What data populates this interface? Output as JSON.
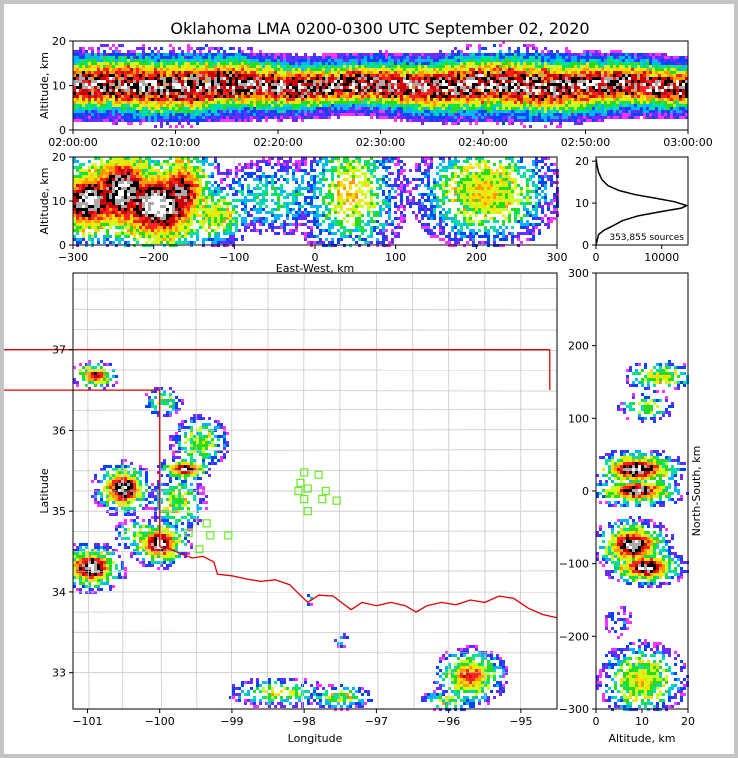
{
  "title": "Oklahoma LMA 0200-0300 UTC September 02, 2020",
  "colors": {
    "state_border": "#e00000",
    "river": "#e00000",
    "county": "#c8c8c8",
    "station": "#66ee22",
    "axis": "#000000"
  },
  "chart_data": [
    {
      "panel": "time-altitude",
      "type": "heatmap",
      "xlabel": "",
      "ylabel": "Altitude, km",
      "xticks": [
        "02:00:00",
        "02:10:00",
        "02:20:00",
        "02:30:00",
        "02:40:00",
        "02:50:00",
        "03:00:00"
      ],
      "yticks": [
        "0",
        "10",
        "20"
      ],
      "xlim_minutes": [
        0,
        60
      ],
      "ylim": [
        0,
        20
      ]
    },
    {
      "panel": "east-west-altitude",
      "type": "heatmap",
      "xlabel": "East-West, km",
      "ylabel": "Altitude, km",
      "xticks": [
        "−300",
        "−200",
        "−100",
        "0",
        "100",
        "200",
        "300"
      ],
      "yticks": [
        "0",
        "10",
        "20"
      ],
      "xlim": [
        -300,
        300
      ],
      "ylim": [
        0,
        20
      ],
      "grid": true,
      "cores": [
        {
          "x": -280,
          "z": 10,
          "w": 28,
          "h": 8,
          "i": 0.95
        },
        {
          "x": -240,
          "z": 12,
          "w": 30,
          "h": 10,
          "i": 0.95
        },
        {
          "x": -195,
          "z": 9,
          "w": 38,
          "h": 9,
          "i": 1.0
        },
        {
          "x": -165,
          "z": 12,
          "w": 22,
          "h": 9,
          "i": 0.85
        },
        {
          "x": -125,
          "z": 7,
          "w": 25,
          "h": 6,
          "i": 0.5
        },
        {
          "x": -50,
          "z": 11,
          "w": 45,
          "h": 8,
          "i": 0.25
        },
        {
          "x": 45,
          "z": 12,
          "w": 35,
          "h": 14,
          "i": 0.4
        },
        {
          "x": 210,
          "z": 12,
          "w": 45,
          "h": 10,
          "i": 0.55
        }
      ]
    },
    {
      "panel": "altitude-histogram",
      "type": "line",
      "xticks": [
        "0",
        "10000"
      ],
      "yticks": [
        "0",
        "10",
        "20"
      ],
      "xlim": [
        0,
        14000
      ],
      "ylim": [
        0,
        21
      ],
      "annotation": "353,855 sources",
      "points": [
        [
          0,
          0
        ],
        [
          400,
          2.5
        ],
        [
          1200,
          3.5
        ],
        [
          2500,
          4.5
        ],
        [
          4000,
          5.8
        ],
        [
          6500,
          7.0
        ],
        [
          10000,
          8.0
        ],
        [
          13000,
          8.8
        ],
        [
          13800,
          9.4
        ],
        [
          12000,
          10.3
        ],
        [
          9000,
          11.2
        ],
        [
          6000,
          12.0
        ],
        [
          3500,
          13.0
        ],
        [
          1800,
          14.2
        ],
        [
          900,
          15.6
        ],
        [
          400,
          17.3
        ],
        [
          150,
          19.0
        ],
        [
          30,
          20.5
        ]
      ]
    },
    {
      "panel": "plan-view",
      "type": "heatmap",
      "xlabel": "Longitude",
      "ylabel": "Latitude",
      "xticks": [
        "−101",
        "−100",
        "−99",
        "−98",
        "−97",
        "−96",
        "−95"
      ],
      "yticks": [
        "33",
        "34",
        "35",
        "36",
        "37"
      ],
      "xlim": [
        -101.2,
        -94.5
      ],
      "ylim": [
        32.55,
        37.95
      ],
      "cores": [
        {
          "lon": -100.9,
          "lat": 36.68,
          "w": 0.22,
          "h": 0.12,
          "i": 0.8
        },
        {
          "lon": -99.95,
          "lat": 36.35,
          "w": 0.2,
          "h": 0.14,
          "i": 0.4
        },
        {
          "lon": -99.45,
          "lat": 35.85,
          "w": 0.3,
          "h": 0.25,
          "i": 0.45
        },
        {
          "lon": -99.65,
          "lat": 35.52,
          "w": 0.25,
          "h": 0.1,
          "i": 0.9
        },
        {
          "lon": -100.5,
          "lat": 35.28,
          "w": 0.28,
          "h": 0.22,
          "i": 0.95
        },
        {
          "lon": -99.75,
          "lat": 35.1,
          "w": 0.3,
          "h": 0.3,
          "i": 0.4
        },
        {
          "lon": -100.3,
          "lat": 34.72,
          "w": 0.25,
          "h": 0.15,
          "i": 0.4
        },
        {
          "lon": -100.0,
          "lat": 34.6,
          "w": 0.28,
          "h": 0.2,
          "i": 0.95
        },
        {
          "lon": -100.95,
          "lat": 34.3,
          "w": 0.32,
          "h": 0.2,
          "i": 0.95
        },
        {
          "lon": -95.7,
          "lat": 32.95,
          "w": 0.35,
          "h": 0.25,
          "i": 0.7
        },
        {
          "lon": -98.35,
          "lat": 32.75,
          "w": 0.55,
          "h": 0.15,
          "i": 0.35
        },
        {
          "lon": -97.5,
          "lat": 32.7,
          "w": 0.35,
          "h": 0.12,
          "i": 0.4
        },
        {
          "lon": -96.0,
          "lat": 32.65,
          "w": 0.3,
          "h": 0.1,
          "i": 0.4
        },
        {
          "lon": -97.9,
          "lat": 33.9,
          "w": 0.12,
          "h": 0.08,
          "i": 0.15
        },
        {
          "lon": -97.5,
          "lat": 33.4,
          "w": 0.12,
          "h": 0.1,
          "i": 0.15
        }
      ],
      "stations": [
        [
          -98.0,
          35.48
        ],
        [
          -97.8,
          35.45
        ],
        [
          -98.05,
          35.35
        ],
        [
          -97.95,
          35.28
        ],
        [
          -98.08,
          35.25
        ],
        [
          -97.7,
          35.25
        ],
        [
          -98.0,
          35.15
        ],
        [
          -97.75,
          35.15
        ],
        [
          -97.55,
          35.13
        ],
        [
          -97.95,
          35.0
        ],
        [
          -99.35,
          34.85
        ],
        [
          -99.6,
          34.73
        ],
        [
          -99.3,
          34.7
        ],
        [
          -99.05,
          34.7
        ],
        [
          -99.45,
          34.53
        ]
      ],
      "state_lines": [
        [
          [
            -103,
            37
          ],
          [
            -94.6,
            37
          ]
        ],
        [
          [
            -103,
            36.5
          ],
          [
            -100,
            36.5
          ],
          [
            -100,
            34.56
          ]
        ],
        [
          [
            -94.6,
            37
          ],
          [
            -94.6,
            36.5
          ]
        ]
      ],
      "red_river": [
        [
          -100,
          34.56
        ],
        [
          -99.85,
          34.53
        ],
        [
          -99.7,
          34.47
        ],
        [
          -99.55,
          34.42
        ],
        [
          -99.4,
          34.44
        ],
        [
          -99.25,
          34.37
        ],
        [
          -99.2,
          34.22
        ],
        [
          -99.0,
          34.2
        ],
        [
          -98.8,
          34.16
        ],
        [
          -98.6,
          34.13
        ],
        [
          -98.4,
          34.15
        ],
        [
          -98.2,
          34.09
        ],
        [
          -98.1,
          34.0
        ],
        [
          -97.95,
          33.87
        ],
        [
          -97.8,
          33.96
        ],
        [
          -97.6,
          33.95
        ],
        [
          -97.5,
          33.88
        ],
        [
          -97.35,
          33.78
        ],
        [
          -97.2,
          33.87
        ],
        [
          -97.0,
          33.83
        ],
        [
          -96.8,
          33.87
        ],
        [
          -96.6,
          33.83
        ],
        [
          -96.45,
          33.75
        ],
        [
          -96.3,
          33.83
        ],
        [
          -96.1,
          33.87
        ],
        [
          -95.9,
          33.84
        ],
        [
          -95.7,
          33.9
        ],
        [
          -95.5,
          33.87
        ],
        [
          -95.3,
          33.95
        ],
        [
          -95.1,
          33.92
        ],
        [
          -94.9,
          33.8
        ],
        [
          -94.7,
          33.72
        ],
        [
          -94.5,
          33.68
        ]
      ]
    },
    {
      "panel": "north-south-altitude",
      "type": "heatmap",
      "xlabel": "Altitude, km",
      "ylabel": "North-South, km",
      "xticks": [
        "0",
        "10",
        "20"
      ],
      "yticks": [
        "−300",
        "−200",
        "−100",
        "0",
        "100",
        "200",
        "300"
      ],
      "xlim": [
        0,
        20
      ],
      "ylim": [
        -300,
        300
      ],
      "cores": [
        {
          "z": 14,
          "y": 158,
          "w": 5,
          "h": 12,
          "i": 0.5
        },
        {
          "z": 11,
          "y": 115,
          "w": 4,
          "h": 12,
          "i": 0.4
        },
        {
          "z": 9,
          "y": 30,
          "w": 6,
          "h": 14,
          "i": 0.95
        },
        {
          "z": 9,
          "y": 0,
          "w": 6,
          "h": 12,
          "i": 0.9
        },
        {
          "z": 8,
          "y": -75,
          "w": 5,
          "h": 20,
          "i": 0.95
        },
        {
          "z": 11,
          "y": -105,
          "w": 5,
          "h": 14,
          "i": 0.95
        },
        {
          "z": 10,
          "y": -260,
          "w": 6,
          "h": 30,
          "i": 0.55
        },
        {
          "z": 5,
          "y": -180,
          "w": 3,
          "h": 20,
          "i": 0.12
        }
      ]
    }
  ]
}
